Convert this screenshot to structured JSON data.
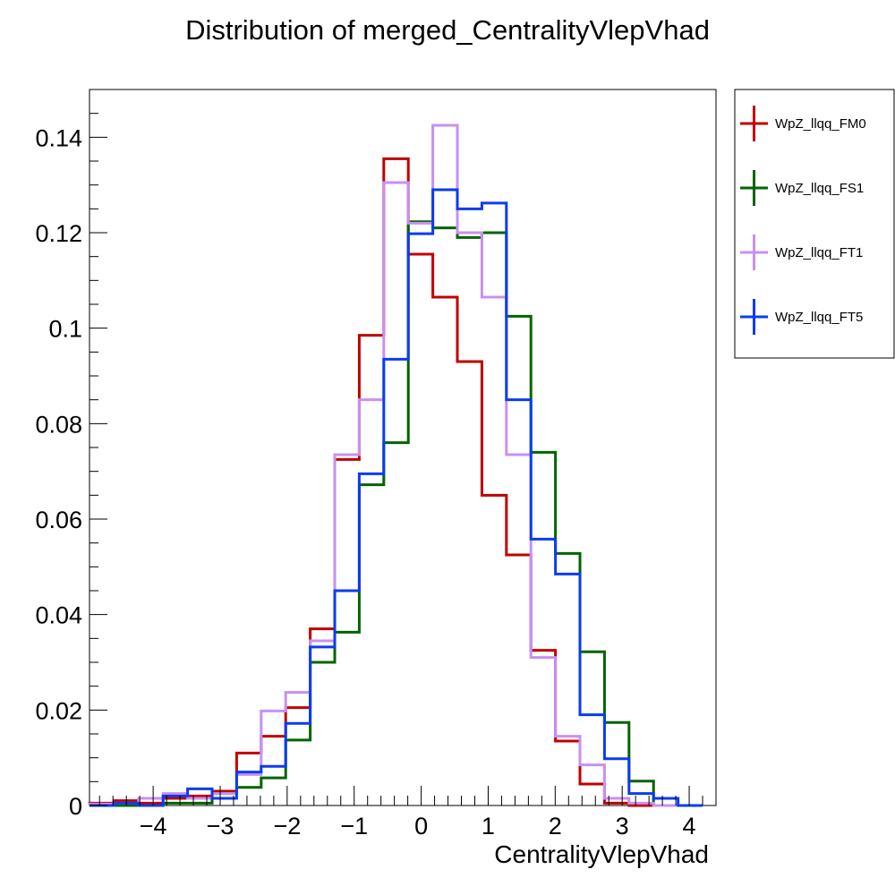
{
  "chart_data": {
    "type": "histogram",
    "title": "Distribution of merged_CentralityVlepVhad",
    "xlabel": "CentralityVlepVhad",
    "ylabel": "",
    "xlim": [
      -4.95,
      4.4
    ],
    "ylim": [
      0,
      0.15
    ],
    "bin_edges": [
      -4.95,
      -4.584,
      -4.218,
      -3.852,
      -3.486,
      -3.12,
      -2.754,
      -2.388,
      -2.022,
      -1.656,
      -1.29,
      -0.924,
      -0.558,
      -0.192,
      0.174,
      0.54,
      0.906,
      1.272,
      1.638,
      2.004,
      2.37,
      2.736,
      3.102,
      3.468,
      3.834,
      4.2
    ],
    "x_ticks": [
      -4,
      -3,
      -2,
      -1,
      0,
      1,
      2,
      3,
      4
    ],
    "x_tick_labels": [
      "−4",
      "−3",
      "−2",
      "−1",
      "0",
      "1",
      "2",
      "3",
      "4"
    ],
    "y_ticks": [
      0,
      0.02,
      0.04,
      0.06,
      0.08,
      0.1,
      0.12,
      0.14
    ],
    "y_tick_labels": [
      "0",
      "0.02",
      "0.04",
      "0.06",
      "0.08",
      "0.1",
      "0.12",
      "0.14"
    ],
    "legend_position": "outside-top-right",
    "series": [
      {
        "name": "WpZ_llqq_FM0",
        "color": "#c00000",
        "values": [
          0.0005,
          0.001,
          0.0005,
          0.0015,
          0.002,
          0.003,
          0.011,
          0.0145,
          0.0205,
          0.037,
          0.0725,
          0.0985,
          0.1355,
          0.1155,
          0.1065,
          0.093,
          0.065,
          0.0525,
          0.0325,
          0.0135,
          0.0045,
          0.0005,
          0.0,
          0.0,
          0.0
        ]
      },
      {
        "name": "WpZ_llqq_FS1",
        "color": "#006400",
        "values": [
          0.0,
          0.0,
          0.0,
          0.0005,
          0.0005,
          0.0025,
          0.0038,
          0.0058,
          0.0137,
          0.03,
          0.0363,
          0.0672,
          0.076,
          0.1223,
          0.121,
          0.119,
          0.12,
          0.1025,
          0.074,
          0.0528,
          0.0322,
          0.0174,
          0.0051,
          0.0,
          0.0
        ]
      },
      {
        "name": "WpZ_llqq_FT1",
        "color": "#c890f0",
        "values": [
          0.0003,
          0.0005,
          0.0015,
          0.0025,
          0.0015,
          0.0025,
          0.0065,
          0.0198,
          0.0237,
          0.0345,
          0.0735,
          0.085,
          0.1305,
          0.122,
          0.1425,
          0.12,
          0.1065,
          0.0735,
          0.031,
          0.0145,
          0.0085,
          0.0015,
          0.0005,
          0.0,
          0.0
        ]
      },
      {
        "name": "WpZ_llqq_FT5",
        "color": "#0a3cf0",
        "values": [
          0.0,
          0.0005,
          0.0,
          0.002,
          0.0035,
          0.0015,
          0.007,
          0.0082,
          0.0172,
          0.0332,
          0.045,
          0.0695,
          0.0935,
          0.1198,
          0.129,
          0.125,
          0.1262,
          0.085,
          0.0558,
          0.0485,
          0.019,
          0.0098,
          0.0025,
          0.0015,
          0.0
        ]
      }
    ]
  }
}
